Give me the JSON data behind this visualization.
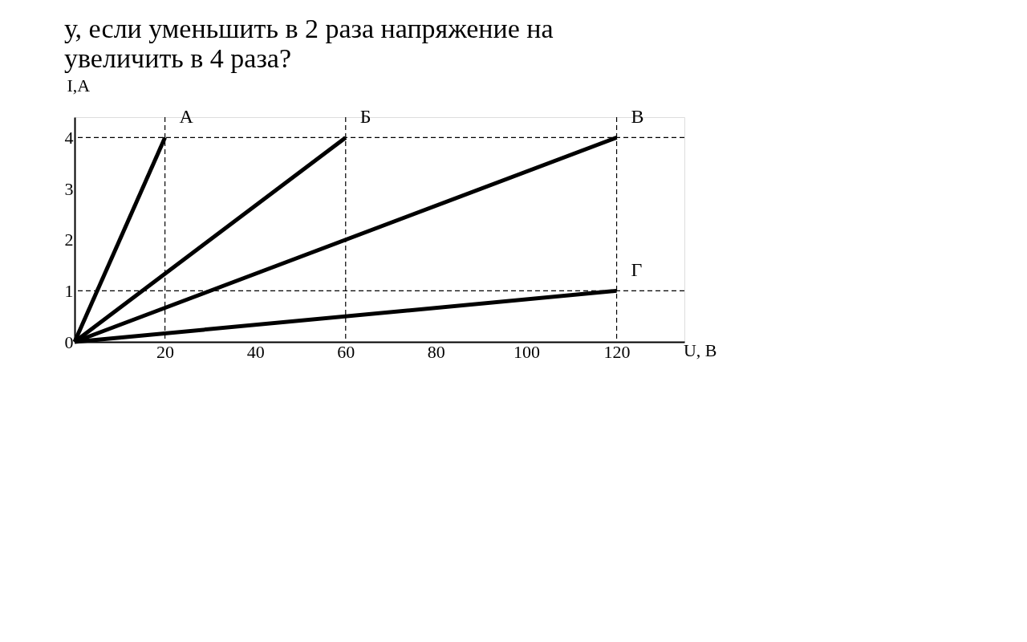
{
  "chart_data": {
    "type": "line",
    "title": "у, если уменьшить в 2 раза напряжение на",
    "subtitle": "увеличить в 4 раза?",
    "xlabel": "U, В",
    "ylabel": "I,А",
    "series": [
      {
        "name": "А",
        "color": "#000000",
        "x": [
          0,
          20
        ],
        "values": [
          0,
          4
        ]
      },
      {
        "name": "Б",
        "color": "#000000",
        "x": [
          0,
          60
        ],
        "values": [
          0,
          4
        ]
      },
      {
        "name": "В",
        "color": "#000000",
        "x": [
          0,
          120
        ],
        "values": [
          0,
          4
        ]
      },
      {
        "name": "Г",
        "color": "#000000",
        "x": [
          0,
          120
        ],
        "values": [
          0,
          1
        ]
      }
    ],
    "xlim": [
      0,
      135
    ],
    "ylim": [
      0,
      4.4
    ],
    "xticks": [
      20,
      40,
      60,
      80,
      100,
      120
    ],
    "yticks": [
      0,
      1,
      2,
      3,
      4
    ],
    "ref_lines": [
      {
        "axis": "y",
        "value": 4,
        "line_style": "dashed",
        "color": "#000000"
      },
      {
        "axis": "y",
        "value": 1,
        "line_style": "dashed",
        "color": "#000000"
      },
      {
        "axis": "x",
        "value": 20,
        "line_style": "dashed",
        "color": "#000000"
      },
      {
        "axis": "x",
        "value": 60,
        "line_style": "dashed",
        "color": "#000000"
      },
      {
        "axis": "x",
        "value": 120,
        "line_style": "dashed",
        "color": "#000000"
      }
    ],
    "grid": false,
    "legend": false,
    "marker": "none",
    "line_style": "solid"
  }
}
